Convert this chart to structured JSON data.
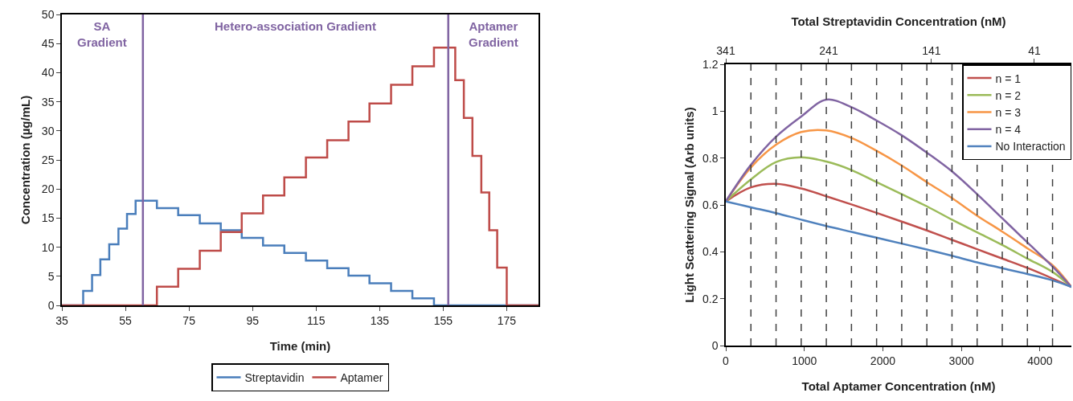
{
  "chart_data": [
    {
      "type": "step",
      "xlabel": "Time (min)",
      "ylabel": "Concentration (µg/mL)",
      "xlim": [
        35,
        185
      ],
      "xticks": [
        35,
        55,
        75,
        95,
        115,
        135,
        155,
        175
      ],
      "ylim": [
        0,
        50
      ],
      "yticks": [
        0,
        5,
        10,
        15,
        20,
        25,
        30,
        35,
        40,
        45,
        50
      ],
      "grid": false,
      "legend": "bottom",
      "series": [
        {
          "name": "Streptavidin",
          "color": "#4a7ebb",
          "x": [
            35,
            41.7,
            44.5,
            47.1,
            49.9,
            52.8,
            55.5,
            58.2,
            64.9,
            71.6,
            78.4,
            85,
            91.6,
            98.3,
            105,
            111.8,
            118.5,
            125.2,
            131.8,
            138.6,
            145.3,
            152.1,
            185
          ],
          "values": [
            0,
            2.5,
            5.2,
            7.9,
            10.5,
            13.2,
            15.7,
            18,
            16.7,
            15.5,
            14.1,
            12.9,
            11.6,
            10.3,
            9,
            7.7,
            6.4,
            5.1,
            3.8,
            2.5,
            1.2,
            0,
            0
          ]
        },
        {
          "name": "Aptamer",
          "color": "#be4b48",
          "x": [
            35,
            64.9,
            71.6,
            78.4,
            85,
            91.6,
            98.3,
            105,
            111.8,
            118.5,
            125.2,
            131.8,
            138.6,
            145.3,
            152.1,
            158.8,
            161.5,
            164.2,
            167,
            169.5,
            172,
            175,
            185
          ],
          "values": [
            0,
            3.2,
            6.3,
            9.4,
            12.6,
            15.8,
            18.9,
            22,
            25.4,
            28.4,
            31.6,
            34.7,
            37.9,
            41.1,
            44.3,
            38.7,
            32.2,
            25.7,
            19.4,
            12.9,
            6.5,
            0,
            0
          ]
        }
      ],
      "ref_lines": [
        {
          "axis": "x",
          "value": 60.5,
          "color": "#8064a2",
          "line_style": "solid"
        },
        {
          "axis": "x",
          "value": 156.6,
          "color": "#8064a2",
          "line_style": "solid"
        }
      ],
      "annotations": [
        "SA\nGradient",
        "Hetero-association Gradient",
        "Aptamer\nGradient"
      ]
    },
    {
      "type": "line",
      "xlabel": "Total Aptamer Concentration (nM)",
      "ylabel": "Light Scattering Signal (Arb units)",
      "x2label": "Total Streptavidin Concentration (nM)",
      "xlim": [
        0,
        4400
      ],
      "xticks": [
        0,
        1000,
        2000,
        3000,
        4000
      ],
      "x2lim": [
        341,
        5
      ],
      "x2ticks": [
        341,
        241,
        141,
        41
      ],
      "ylim": [
        0,
        1.2
      ],
      "yticks": [
        0,
        0.2,
        0.4,
        0.6,
        0.8,
        1,
        1.2
      ],
      "grid": false,
      "legend": "top right",
      "x": [
        0,
        320,
        640,
        960,
        1280,
        1600,
        1920,
        2240,
        2560,
        2880,
        3200,
        3520,
        3840,
        4160,
        4400
      ],
      "series": [
        {
          "name": "n = 1",
          "color": "#c0504d",
          "values": [
            0.615,
            0.675,
            0.69,
            0.67,
            0.637,
            0.602,
            0.566,
            0.529,
            0.491,
            0.451,
            0.411,
            0.371,
            0.331,
            0.286,
            0.25
          ]
        },
        {
          "name": "n = 2",
          "color": "#9bbb59",
          "values": [
            0.615,
            0.709,
            0.783,
            0.803,
            0.785,
            0.749,
            0.697,
            0.646,
            0.594,
            0.537,
            0.483,
            0.429,
            0.371,
            0.314,
            0.25
          ]
        },
        {
          "name": "n = 3",
          "color": "#f79646",
          "values": [
            0.615,
            0.76,
            0.857,
            0.911,
            0.918,
            0.886,
            0.831,
            0.768,
            0.697,
            0.629,
            0.554,
            0.486,
            0.415,
            0.343,
            0.25
          ]
        },
        {
          "name": "n = 4",
          "color": "#8064a2",
          "values": [
            0.615,
            0.771,
            0.891,
            0.977,
            1.049,
            1.017,
            0.96,
            0.897,
            0.823,
            0.743,
            0.646,
            0.543,
            0.44,
            0.337,
            0.25
          ]
        },
        {
          "name": "No Interaction",
          "color": "#4f81bd",
          "values": [
            0.615,
            0.59,
            0.565,
            0.537,
            0.51,
            0.485,
            0.46,
            0.435,
            0.41,
            0.383,
            0.355,
            0.33,
            0.305,
            0.278,
            0.25
          ]
        }
      ],
      "ref_lines": [
        {
          "axis": "x",
          "value": 320,
          "color": "#404040",
          "line_style": "dashed"
        },
        {
          "axis": "x",
          "value": 640,
          "color": "#404040",
          "line_style": "dashed"
        },
        {
          "axis": "x",
          "value": 960,
          "color": "#404040",
          "line_style": "dashed"
        },
        {
          "axis": "x",
          "value": 1280,
          "color": "#404040",
          "line_style": "dashed"
        },
        {
          "axis": "x",
          "value": 1600,
          "color": "#404040",
          "line_style": "dashed"
        },
        {
          "axis": "x",
          "value": 1920,
          "color": "#404040",
          "line_style": "dashed"
        },
        {
          "axis": "x",
          "value": 2240,
          "color": "#404040",
          "line_style": "dashed"
        },
        {
          "axis": "x",
          "value": 2560,
          "color": "#404040",
          "line_style": "dashed"
        },
        {
          "axis": "x",
          "value": 2880,
          "color": "#404040",
          "line_style": "dashed"
        },
        {
          "axis": "x",
          "value": 3200,
          "color": "#404040",
          "line_style": "dashed"
        },
        {
          "axis": "x",
          "value": 3520,
          "color": "#404040",
          "line_style": "dashed"
        },
        {
          "axis": "x",
          "value": 3840,
          "color": "#404040",
          "line_style": "dashed"
        },
        {
          "axis": "x",
          "value": 4160,
          "color": "#404040",
          "line_style": "dashed"
        }
      ]
    }
  ]
}
